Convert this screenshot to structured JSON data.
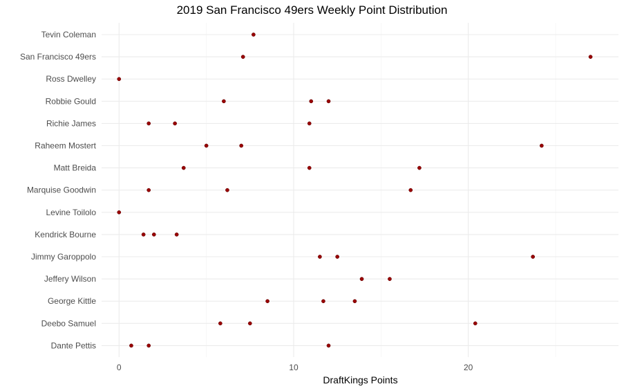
{
  "chart_data": {
    "type": "scatter",
    "title": "2019 San Francisco 49ers Weekly Point Distribution",
    "xlabel": "DraftKings Points",
    "ylabel": "",
    "xlim": [
      -1,
      28.6
    ],
    "xticks": [
      0,
      10,
      20
    ],
    "grid": true,
    "legend": "none",
    "point_color": "#990000",
    "categories": [
      "Tevin Coleman",
      "San Francisco 49ers",
      "Ross Dwelley",
      "Robbie Gould",
      "Richie James",
      "Raheem Mostert",
      "Matt Breida",
      "Marquise Goodwin",
      "Levine Toilolo",
      "Kendrick Bourne",
      "Jimmy Garoppolo",
      "Jeffery Wilson",
      "George Kittle",
      "Deebo Samuel",
      "Dante Pettis"
    ],
    "points": [
      {
        "y": "Tevin Coleman",
        "x": [
          7.7
        ]
      },
      {
        "y": "San Francisco 49ers",
        "x": [
          7.1,
          27.0
        ]
      },
      {
        "y": "Ross Dwelley",
        "x": [
          0.0
        ]
      },
      {
        "y": "Robbie Gould",
        "x": [
          6.0,
          11.0,
          12.0
        ]
      },
      {
        "y": "Richie James",
        "x": [
          1.7,
          3.2,
          10.9
        ]
      },
      {
        "y": "Raheem Mostert",
        "x": [
          5.0,
          7.0,
          24.2
        ]
      },
      {
        "y": "Matt Breida",
        "x": [
          3.7,
          10.9,
          17.2
        ]
      },
      {
        "y": "Marquise Goodwin",
        "x": [
          1.7,
          6.2,
          16.7
        ]
      },
      {
        "y": "Levine Toilolo",
        "x": [
          0.0
        ]
      },
      {
        "y": "Kendrick Bourne",
        "x": [
          1.4,
          2.0,
          3.3
        ]
      },
      {
        "y": "Jimmy Garoppolo",
        "x": [
          11.5,
          12.5,
          23.7
        ]
      },
      {
        "y": "Jeffery Wilson",
        "x": [
          13.9,
          15.5
        ]
      },
      {
        "y": "George Kittle",
        "x": [
          8.5,
          11.7,
          13.5
        ]
      },
      {
        "y": "Deebo Samuel",
        "x": [
          5.8,
          7.5,
          20.4
        ]
      },
      {
        "y": "Dante Pettis",
        "x": [
          0.7,
          1.7,
          12.0
        ]
      }
    ]
  }
}
